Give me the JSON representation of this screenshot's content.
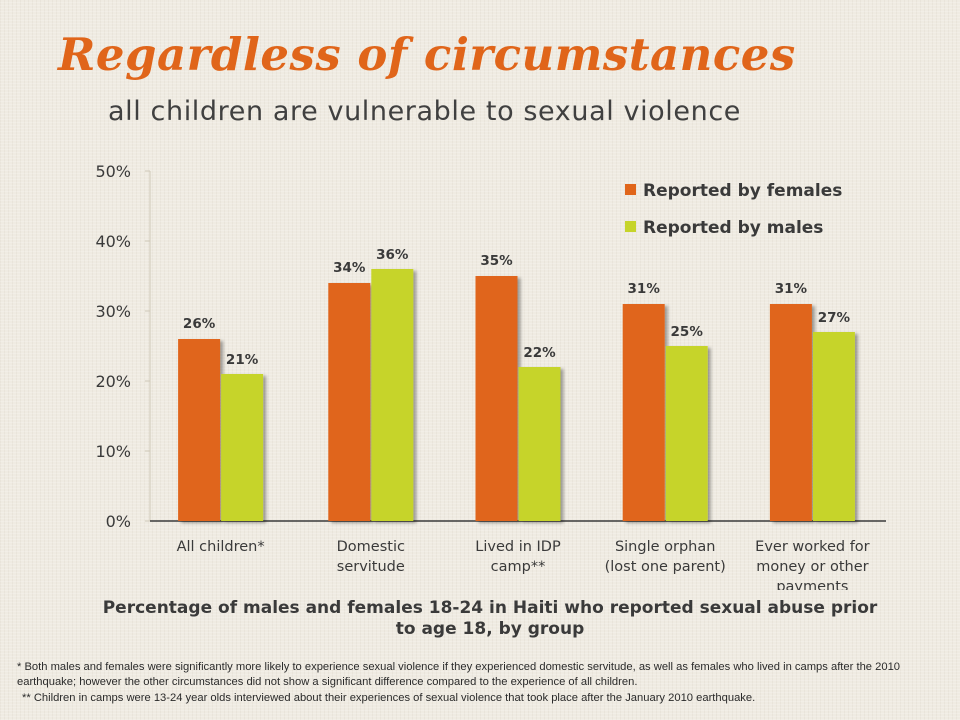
{
  "title": "Regardless of circumstances",
  "subtitle": "all children are vulnerable to sexual violence",
  "chart_data": {
    "type": "bar",
    "categories": [
      [
        "All children*"
      ],
      [
        "Domestic",
        "servitude"
      ],
      [
        "Lived in IDP",
        "camp**"
      ],
      [
        "Single orphan",
        "(lost one parent)"
      ],
      [
        "Ever worked for",
        "money or other",
        "payments"
      ]
    ],
    "series": [
      {
        "name": "Reported by females",
        "color": "#e0651a",
        "values": [
          26,
          34,
          35,
          31,
          31
        ],
        "labels": [
          "26%",
          "34%",
          "35%",
          "31%",
          "31%"
        ]
      },
      {
        "name": "Reported by males",
        "color": "#c6d42a",
        "values": [
          21,
          36,
          22,
          25,
          27
        ],
        "labels": [
          "21%",
          "36%",
          "22%",
          "25%",
          "27%"
        ]
      }
    ],
    "ylim": [
      0,
      50
    ],
    "yticks": [
      0,
      10,
      20,
      30,
      40,
      50
    ],
    "ytick_labels": [
      "0%",
      "10%",
      "20%",
      "30%",
      "40%",
      "50%"
    ],
    "legend_position": "top-right",
    "xlabel": "",
    "ylabel": ""
  },
  "caption": "Percentage of males and females 18-24 in Haiti who reported sexual abuse prior to age 18, by group",
  "footnote_1": "* Both males and females  were  significantly more likely to experience  sexual violence if they experienced domestic servitude, as well as females who lived in camps after the 2010 earthquake;  however the other circumstances did  not show a significant difference compared to the experience of all children.",
  "footnote_2": "** Children in camps were 13-24  year olds interviewed about their experiences of sexual violence that took place after the January 2010 earthquake."
}
